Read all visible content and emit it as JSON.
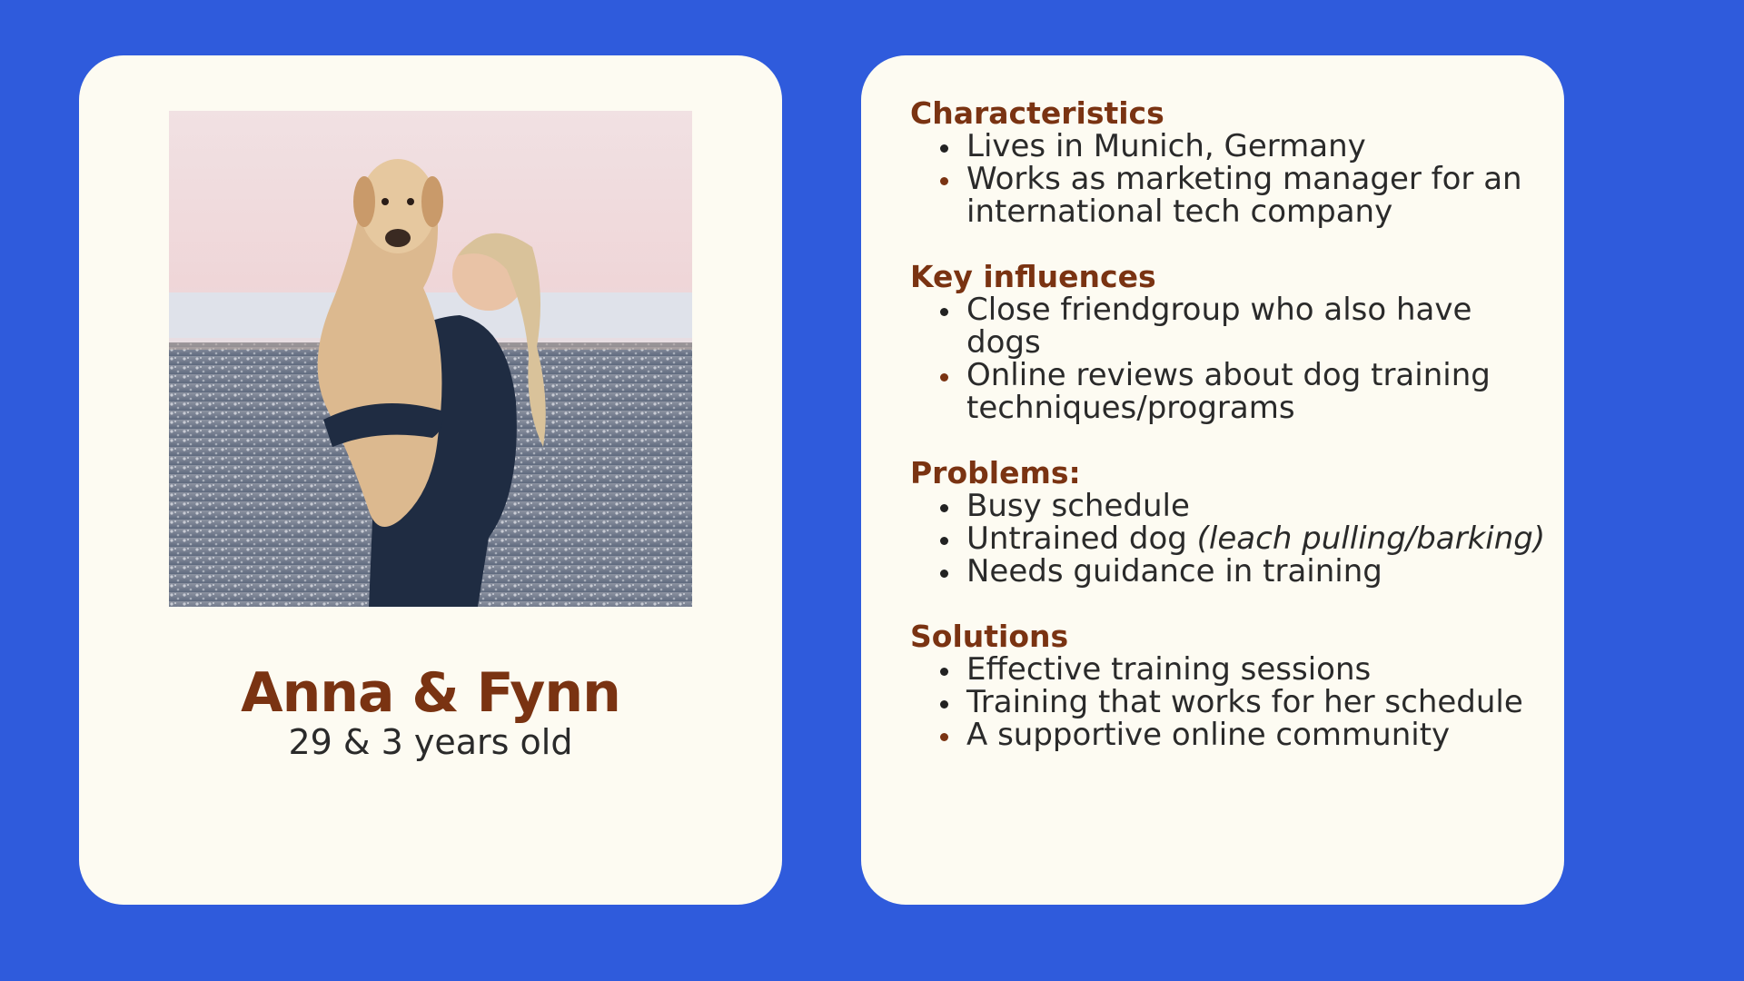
{
  "profile": {
    "name": "Anna & Fynn",
    "age": "29 & 3 years old",
    "photo_icon": "woman-holding-dog-photo"
  },
  "sections": [
    {
      "heading": "Characteristics",
      "items": [
        {
          "text": "Lives in Munich, Germany"
        },
        {
          "text": "Works as marketing manager for an international tech company"
        }
      ]
    },
    {
      "heading": "Key influences",
      "items": [
        {
          "text": "Close friendgroup who also have dogs"
        },
        {
          "text": "Online reviews about dog training techniques/programs"
        }
      ]
    },
    {
      "heading": "Problems:",
      "items": [
        {
          "text": "Busy schedule"
        },
        {
          "text": "Untrained dog ",
          "em": "(leach pulling/barking)"
        },
        {
          "text": " Needs guidance in training"
        }
      ]
    },
    {
      "heading": "Solutions",
      "items": [
        {
          "text": "Effective training sessions"
        },
        {
          "text": "Training that works for her schedule"
        },
        {
          "text": "A supportive online community"
        }
      ]
    }
  ],
  "colors": {
    "background": "#2f5bdc",
    "card": "#fdfbf2",
    "accent": "#7a3312",
    "text": "#2a2a2a"
  }
}
